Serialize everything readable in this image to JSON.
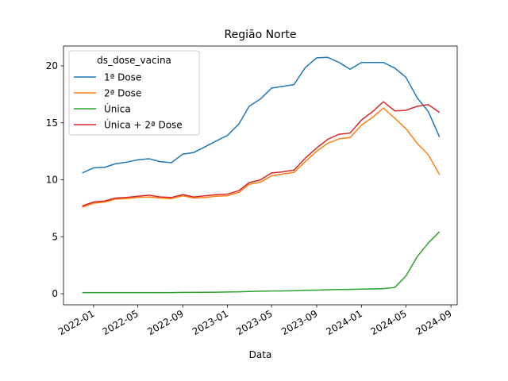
{
  "chart_data": {
    "type": "line",
    "title": "Região Norte",
    "xlabel": "Data",
    "x": [
      "2021-12",
      "2022-01",
      "2022-02",
      "2022-03",
      "2022-04",
      "2022-05",
      "2022-06",
      "2022-07",
      "2022-08",
      "2022-09",
      "2022-10",
      "2022-11",
      "2022-12",
      "2023-01",
      "2023-02",
      "2023-03",
      "2023-04",
      "2023-05",
      "2023-06",
      "2023-07",
      "2023-08",
      "2023-09",
      "2023-10",
      "2023-11",
      "2023-12",
      "2024-01",
      "2024-02",
      "2024-03",
      "2024-04",
      "2024-05",
      "2024-06",
      "2024-07",
      "2024-08"
    ],
    "series": [
      {
        "name": "1ª Dose",
        "color": "#1f77b4",
        "values": [
          10.6,
          11.05,
          11.1,
          11.4,
          11.55,
          11.75,
          11.85,
          11.6,
          11.5,
          12.25,
          12.4,
          12.9,
          13.4,
          13.9,
          14.9,
          16.45,
          17.1,
          18.05,
          18.2,
          18.35,
          19.85,
          20.7,
          20.75,
          20.3,
          19.7,
          20.3,
          20.3,
          20.3,
          19.8,
          19.0,
          17.2,
          16.0,
          13.75
        ]
      },
      {
        "name": "2ª Dose",
        "color": "#ff7f0e",
        "values": [
          7.6,
          7.95,
          8.05,
          8.3,
          8.35,
          8.45,
          8.5,
          8.4,
          8.35,
          8.6,
          8.4,
          8.45,
          8.55,
          8.6,
          8.9,
          9.6,
          9.8,
          10.35,
          10.5,
          10.65,
          11.6,
          12.5,
          13.2,
          13.6,
          13.7,
          14.8,
          15.5,
          16.3,
          15.4,
          14.5,
          13.2,
          12.2,
          10.45
        ]
      },
      {
        "name": "Única",
        "color": "#2ca02c",
        "values": [
          0.1,
          0.1,
          0.1,
          0.1,
          0.1,
          0.1,
          0.1,
          0.1,
          0.1,
          0.12,
          0.12,
          0.13,
          0.14,
          0.15,
          0.17,
          0.2,
          0.22,
          0.24,
          0.25,
          0.26,
          0.3,
          0.32,
          0.35,
          0.37,
          0.38,
          0.4,
          0.42,
          0.45,
          0.55,
          1.55,
          3.25,
          4.45,
          5.45
        ]
      },
      {
        "name": "Única + 2ª Dose",
        "color": "#d62728",
        "values": [
          7.7,
          8.05,
          8.15,
          8.4,
          8.45,
          8.55,
          8.65,
          8.5,
          8.45,
          8.7,
          8.5,
          8.6,
          8.7,
          8.75,
          9.05,
          9.75,
          10.0,
          10.6,
          10.7,
          10.85,
          11.9,
          12.8,
          13.55,
          14.0,
          14.1,
          15.25,
          16.0,
          16.85,
          16.05,
          16.1,
          16.45,
          16.6,
          15.9
        ]
      }
    ],
    "xlim": [
      "2021-10-11",
      "2024-09-18"
    ],
    "xticks": [
      "2022-01",
      "2022-05",
      "2022-09",
      "2023-01",
      "2023-05",
      "2023-09",
      "2024-01",
      "2024-05",
      "2024-09"
    ],
    "ylim": [
      -0.97,
      21.74
    ],
    "yticks": [
      0,
      5,
      10,
      15,
      20
    ],
    "legend_title": "ds_dose_vacina",
    "legend": "upper left"
  }
}
